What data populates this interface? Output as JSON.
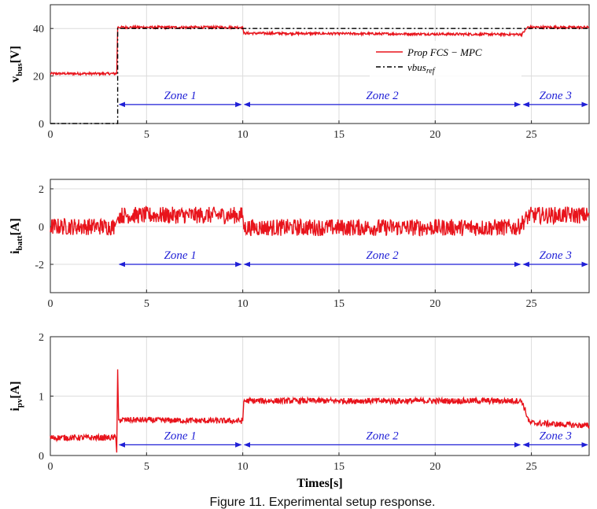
{
  "caption": "Figure 11. Experimental setup response.",
  "colors": {
    "series": "#e8141c",
    "reference": "#000000",
    "zone": "#1f1fd6",
    "grid": "#dcdcdc"
  },
  "chart_data": [
    {
      "type": "line",
      "ylabel_main": "v",
      "ylabel_sub": "bus",
      "ylabel_unit": "[V]",
      "xlim": [
        0,
        28
      ],
      "ylim": [
        0,
        50
      ],
      "xticks": [
        0,
        5,
        10,
        15,
        20,
        25
      ],
      "yticks": [
        0,
        20,
        40
      ],
      "grid": true,
      "legend": {
        "placement": "upper-right",
        "entries": [
          {
            "label": "Prop FCS − MPC",
            "style": "solid-red"
          },
          {
            "label_main": "vbus",
            "label_sub": "ref",
            "style": "dashdot-black"
          }
        ]
      },
      "series": [
        {
          "name": "Prop FCS − MPC",
          "x": [
            0,
            3.45,
            3.5,
            10,
            10.05,
            24.5,
            24.8,
            28
          ],
          "y": [
            21,
            21,
            40.5,
            40.5,
            38,
            37.5,
            40.5,
            40.5
          ],
          "noise": 0.5
        },
        {
          "name": "vbus_ref",
          "x": [
            0,
            3.5,
            3.5,
            28
          ],
          "y": [
            0,
            0,
            40,
            40
          ]
        }
      ],
      "zones": [
        {
          "label": "Zone 1",
          "x_start": 3.5,
          "x_end": 10,
          "y": 8
        },
        {
          "label": "Zone 2",
          "x_start": 10,
          "x_end": 24.5,
          "y": 8
        },
        {
          "label": "Zone 3",
          "x_start": 24.5,
          "x_end": 28,
          "y": 8
        }
      ]
    },
    {
      "type": "line",
      "ylabel_main": "i",
      "ylabel_sub": "batt",
      "ylabel_unit": "[A]",
      "xlim": [
        0,
        28
      ],
      "ylim": [
        -3.5,
        2.5
      ],
      "xticks": [
        0,
        5,
        10,
        15,
        20,
        25
      ],
      "yticks": [
        -2,
        0,
        2
      ],
      "grid": true,
      "series": [
        {
          "name": "Prop FCS − MPC",
          "x": [
            0,
            3.35,
            3.55,
            10,
            10.05,
            24.3,
            24.9,
            28
          ],
          "y": [
            0,
            0,
            0.6,
            0.6,
            -0.05,
            -0.05,
            0.6,
            0.6
          ],
          "noise": 0.45
        }
      ],
      "zones": [
        {
          "label": "Zone 1",
          "x_start": 3.5,
          "x_end": 10,
          "y": -2
        },
        {
          "label": "Zone 2",
          "x_start": 10,
          "x_end": 24.5,
          "y": -2
        },
        {
          "label": "Zone 3",
          "x_start": 24.5,
          "x_end": 28,
          "y": -2
        }
      ]
    },
    {
      "type": "line",
      "ylabel_main": "i",
      "ylabel_sub": "pv",
      "ylabel_unit": "[A]",
      "xlabel": "Times[s]",
      "xlim": [
        0,
        28
      ],
      "ylim": [
        0,
        2
      ],
      "xticks": [
        0,
        5,
        10,
        15,
        20,
        25
      ],
      "yticks": [
        0,
        1,
        2
      ],
      "grid": true,
      "series": [
        {
          "name": "Prop FCS − MPC",
          "x": [
            0,
            3.4,
            3.45,
            3.5,
            3.55,
            3.6,
            10,
            10.05,
            24.5,
            24.9,
            28
          ],
          "y": [
            0.3,
            0.3,
            0.05,
            1.45,
            0.6,
            0.6,
            0.58,
            0.92,
            0.92,
            0.55,
            0.5
          ],
          "noise": 0.05
        }
      ],
      "zones": [
        {
          "label": "Zone 1",
          "x_start": 3.5,
          "x_end": 10,
          "y": 0.18
        },
        {
          "label": "Zone 2",
          "x_start": 10,
          "x_end": 24.5,
          "y": 0.18
        },
        {
          "label": "Zone 3",
          "x_start": 24.5,
          "x_end": 28,
          "y": 0.18
        }
      ]
    }
  ]
}
